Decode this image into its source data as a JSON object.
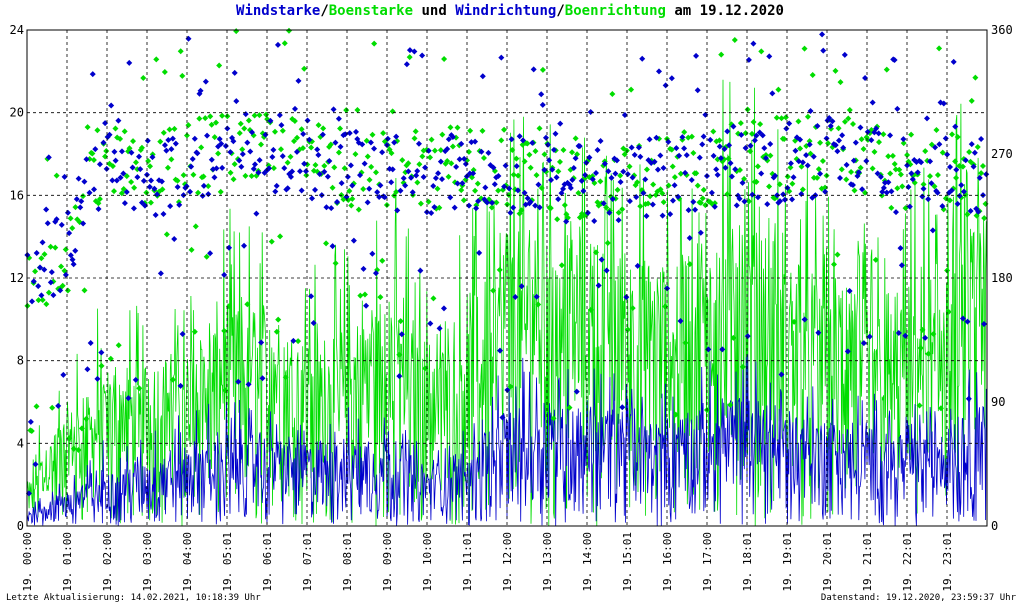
{
  "title": {
    "part1": "Windstarke",
    "sep1": "/",
    "part2": "Boenstarke",
    "part3": " und ",
    "part4": "Windrichtung",
    "sep2": "/",
    "part5": "Boenrichtung",
    "part6": " am 19.12.2020"
  },
  "footer": {
    "left": "Letzte Aktualisierung: 14.02.2021, 10:18:39 Uhr",
    "right": "Datenstand: 19.12.2020, 23:59:37 Uhr"
  },
  "colors": {
    "wind": "#0000cc",
    "gust": "#00dd00",
    "grid": "#000000",
    "background": "#ffffff"
  },
  "chart_data": {
    "type": "line",
    "left_axis": {
      "range": [
        0,
        24
      ],
      "ticks": [
        0,
        4,
        8,
        12,
        16,
        20,
        24
      ]
    },
    "right_axis": {
      "range": [
        0,
        360
      ],
      "ticks": [
        0,
        90,
        180,
        270,
        360
      ]
    },
    "x_ticks": [
      "19. 00:00",
      "19. 01:00",
      "19. 02:00",
      "19. 03:00",
      "19. 04:00",
      "19. 05:01",
      "19. 06:01",
      "19. 07:01",
      "19. 08:01",
      "19. 09:00",
      "19. 10:00",
      "19. 11:01",
      "19. 12:00",
      "19. 13:00",
      "19. 14:00",
      "19. 15:01",
      "19. 16:00",
      "19. 17:00",
      "19. 18:01",
      "19. 19:01",
      "19. 20:01",
      "19. 21:01",
      "19. 22:01",
      "19. 23:01"
    ],
    "x_range_hours": [
      0,
      24
    ],
    "grid": true,
    "series": [
      {
        "kind": "line",
        "axis": "left",
        "color": "#0000cc",
        "hours": [
          0,
          1,
          2,
          3,
          4,
          5,
          6,
          7,
          8,
          9,
          10,
          11,
          12,
          13,
          14,
          15,
          16,
          17,
          18,
          19,
          20,
          21,
          22,
          23,
          24
        ],
        "values": [
          0.5,
          1.2,
          1.8,
          2.2,
          2.6,
          3.0,
          3.2,
          3.0,
          2.8,
          3.2,
          2.0,
          2.6,
          4.0,
          4.4,
          4.2,
          4.0,
          3.6,
          4.2,
          4.6,
          4.0,
          3.6,
          3.4,
          3.0,
          3.4,
          4.4
        ],
        "spikes": [
          1.2,
          2.4,
          4.5,
          5.0,
          5.6,
          6.5,
          6.0,
          5.2,
          5.8,
          6.4,
          3.6,
          5.2,
          8.0,
          8.4,
          8.2,
          7.6,
          7.0,
          8.0,
          8.6,
          7.6,
          7.0,
          6.8,
          6.0,
          6.8,
          9.0
        ]
      },
      {
        "kind": "line",
        "axis": "left",
        "color": "#00dd00",
        "hours": [
          0,
          1,
          2,
          3,
          4,
          5,
          6,
          7,
          8,
          9,
          10,
          11,
          12,
          13,
          14,
          15,
          16,
          17,
          18,
          19,
          20,
          21,
          22,
          23,
          24
        ],
        "values": [
          1.5,
          4.0,
          5.0,
          5.5,
          6.0,
          7.5,
          7.5,
          6.5,
          7.0,
          8.0,
          6.5,
          7.5,
          10.0,
          10.5,
          10.0,
          9.5,
          9.0,
          10.0,
          10.5,
          9.5,
          8.5,
          8.0,
          7.5,
          9.0,
          11.0
        ],
        "spikes": [
          4.5,
          8.0,
          11.5,
          11.0,
          12.0,
          15.5,
          15.0,
          13.0,
          14.0,
          18.5,
          12.0,
          15.0,
          21.0,
          20.0,
          19.0,
          18.0,
          17.0,
          22.0,
          23.0,
          19.0,
          16.0,
          15.0,
          16.0,
          20.0,
          22.0
        ]
      },
      {
        "kind": "scatter",
        "axis": "right",
        "color": "#0000cc",
        "hours": [
          0,
          0.5,
          1,
          1.5,
          2,
          3,
          4,
          5,
          6,
          7,
          8,
          9,
          10,
          11,
          12,
          13,
          14,
          15,
          16,
          17,
          18,
          19,
          20,
          21,
          22,
          23,
          24
        ],
        "values": [
          180,
          190,
          200,
          240,
          270,
          250,
          265,
          270,
          270,
          265,
          255,
          260,
          255,
          260,
          255,
          250,
          250,
          250,
          255,
          260,
          262,
          265,
          270,
          262,
          255,
          255,
          250
        ]
      },
      {
        "kind": "scatter",
        "axis": "right",
        "color": "#00dd00",
        "hours": [
          0,
          0.5,
          1,
          1.5,
          2,
          3,
          4,
          5,
          6,
          7,
          8,
          9,
          10,
          11,
          12,
          13,
          14,
          15,
          16,
          17,
          18,
          19,
          20,
          21,
          22,
          23,
          24
        ],
        "values": [
          175,
          185,
          195,
          245,
          270,
          250,
          268,
          272,
          272,
          268,
          258,
          262,
          258,
          262,
          258,
          252,
          252,
          252,
          258,
          262,
          264,
          268,
          272,
          264,
          258,
          258,
          252
        ]
      }
    ]
  }
}
